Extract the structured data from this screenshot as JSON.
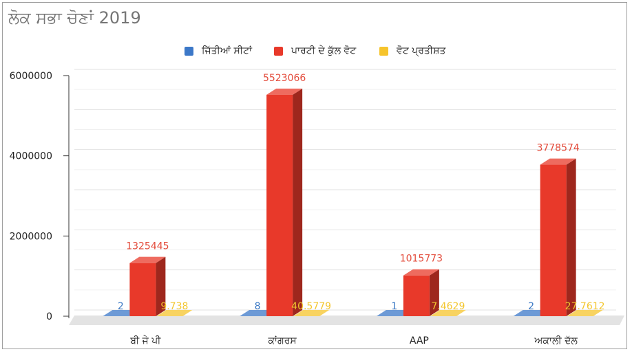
{
  "chart_data": {
    "type": "bar",
    "title": "ਲੋਕ ਸਭਾ ਚੋਣਾਂ 2019",
    "categories": [
      "ਬੀ ਜੇ ਪੀ",
      "ਕਾਂਗਰਸ",
      "AAP",
      "ਅਕਾਲੀ ਦੱਲ"
    ],
    "series": [
      {
        "name": "ਜਿੱਤੀਆਂ ਸੀਟਾਂ",
        "color": "#3c78c8",
        "labelColor": "#3a78c4",
        "values": [
          2,
          8,
          1,
          2
        ],
        "labels": [
          "2",
          "8",
          "1",
          "2"
        ]
      },
      {
        "name": "ਪਾਰਟੀ ਦੇ ਕੁੱਲ ਵੋਟ",
        "color": "#e8392a",
        "labelColor": "#e34b3b",
        "values": [
          1325445,
          5523066,
          1015773,
          3778574
        ],
        "labels": [
          "1325445",
          "5523066",
          "1015773",
          "3778574"
        ]
      },
      {
        "name": "ਵੋਟ ਪ੍ਰਤੀਸ਼ਤ",
        "color": "#f6c42c",
        "labelColor": "#f3c62f",
        "values": [
          9.738,
          40.5779,
          7.4629,
          27.7612
        ],
        "labels": [
          "9.738",
          "40.5779",
          "7.4629",
          "27.7612"
        ]
      }
    ],
    "yticks": [
      "0",
      "2000000",
      "4000000",
      "6000000"
    ],
    "ylim": [
      0,
      6000000
    ],
    "legend": "top",
    "grid": true,
    "xlabel": "",
    "ylabel": ""
  }
}
